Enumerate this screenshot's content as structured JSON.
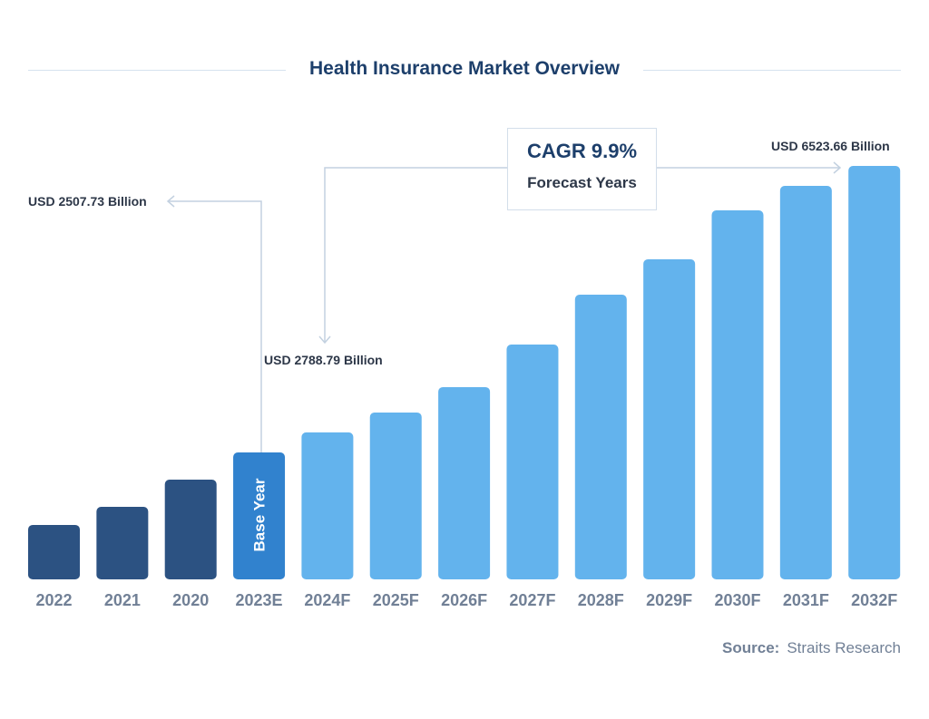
{
  "chart_data": {
    "type": "bar",
    "title": "Health Insurance Market Overview",
    "categories": [
      "2022",
      "2021",
      "2020",
      "2023E",
      "2024F",
      "2025F",
      "2026F",
      "2027F",
      "2028F",
      "2029F",
      "2030F",
      "2031F",
      "2032F"
    ],
    "values": [
      1491,
      1745,
      2126,
      2507.73,
      2788.79,
      3067,
      3423,
      4020,
      4719,
      5215,
      5901,
      6244,
      6523.66
    ],
    "bar_kinds": [
      "historic",
      "historic",
      "historic",
      "base",
      "forecast",
      "forecast",
      "forecast",
      "forecast",
      "forecast",
      "forecast",
      "forecast",
      "forecast",
      "forecast"
    ],
    "colors": {
      "historic": "#2c5282",
      "base": "#3182ce",
      "forecast": "#63b3ed"
    },
    "base_bar_label": "Base Year",
    "annotations": {
      "base_value": "USD 2507.73 Billion",
      "first_forecast_value": "USD 2788.79 Billion",
      "last_forecast_value": "USD 6523.66 Billion"
    },
    "cagr": {
      "value": "CAGR 9.9%",
      "label": "Forecast Years"
    },
    "grid": false,
    "legend": "none"
  },
  "source": {
    "label": "Source:",
    "value": "Straits Research"
  }
}
